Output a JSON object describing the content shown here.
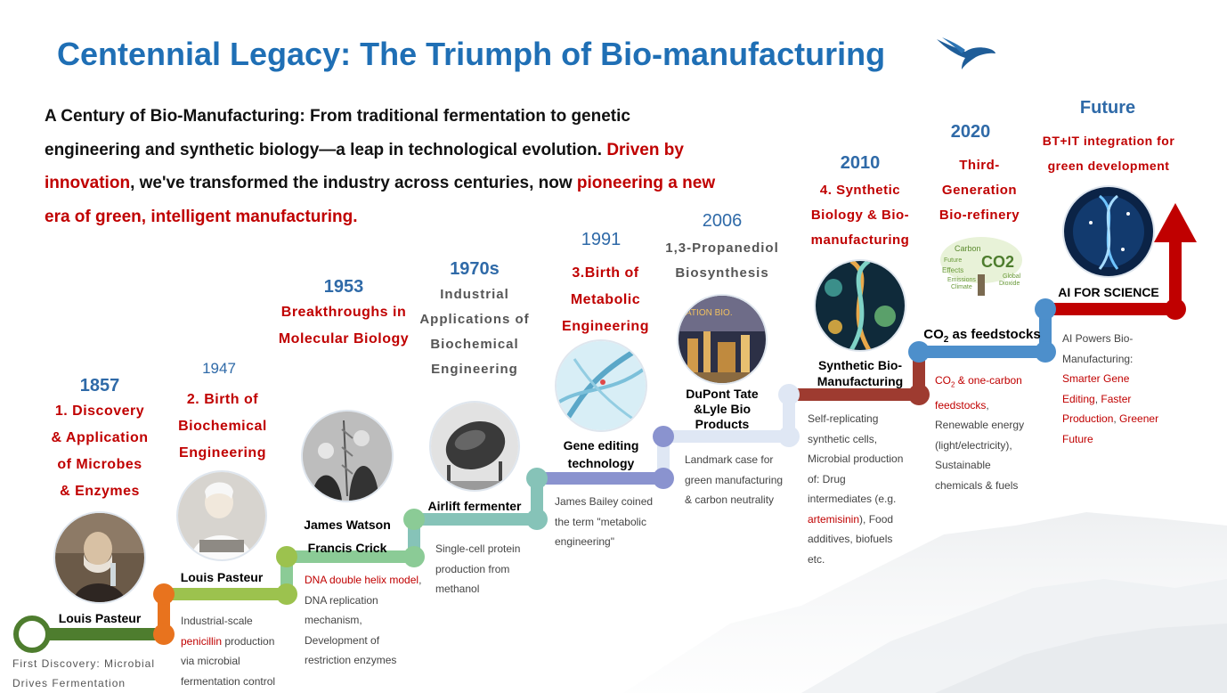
{
  "title": "Centennial Legacy: The Triumph of Bio-manufacturing",
  "intro": {
    "part1": "A Century of Bio-Manufacturing: From traditional fermentation to genetic engineering and synthetic biology—a leap in technological evolution. ",
    "red1": "Driven by innovation",
    "part2": ", we've transformed the industry across centuries, now ",
    "red2": "pioneering a new era of green, intelligent manufacturing."
  },
  "start_note": {
    "line1": "First Discovery: Microbial",
    "line2": "Drives Fermentation"
  },
  "milestones": [
    {
      "year": "1857",
      "lines": [
        "1. Discovery",
        "& Application",
        "of Microbes",
        "& Enzymes"
      ],
      "label": [
        "Louis Pasteur"
      ]
    },
    {
      "year": "1947",
      "lines": [
        "2. Birth of",
        "Biochemical",
        "Engineering"
      ],
      "label": [
        "Louis Pasteur"
      ],
      "desc": {
        "a": "Industrial-scale",
        "b_red": "penicillin",
        "b": " production",
        "c": "via microbial",
        "d": "fermentation control"
      }
    },
    {
      "year": "1953",
      "lines": [
        "Breakthroughs in",
        "Molecular Biology"
      ],
      "label": [
        "James Watson",
        "Francis Crick"
      ],
      "desc": {
        "a_red": "DNA double helix model",
        "a": ",",
        "b": "DNA replication",
        "c": "mechanism,",
        "d": "Development of",
        "e": "restriction enzymes"
      }
    },
    {
      "year": "1970s",
      "lines": [
        "Industrial",
        "Applications of",
        "Biochemical",
        "Engineering"
      ],
      "label": [
        "Airlift fermenter"
      ],
      "desc": {
        "a": "Single-cell protein",
        "b": "production from",
        "c": "methanol"
      }
    },
    {
      "year": "1991",
      "lines": [
        "3.Birth of",
        "Metabolic",
        "Engineering"
      ],
      "label": [
        "Gene editing",
        "technology"
      ],
      "desc": {
        "a": "James Bailey coined",
        "b": "the term \"metabolic",
        "c": "engineering\""
      }
    },
    {
      "year": "2006",
      "lines": [
        "1,3-Propanediol",
        "Biosynthesis"
      ],
      "label": [
        "DuPont Tate",
        "&Lyle Bio",
        "Products"
      ],
      "desc": {
        "a": "Landmark case for",
        "b": "green manufacturing",
        "c": "& carbon neutrality"
      },
      "photo_text": "ATION BIO."
    },
    {
      "year": "2010",
      "lines": [
        "4. Synthetic",
        "Biology & Bio-",
        "manufacturing"
      ],
      "label": [
        "Synthetic Bio-",
        "Manufacturing"
      ],
      "desc": {
        "a": "Self-replicating",
        "b": "synthetic cells,",
        "c": "Microbial production",
        "d": "of: Drug",
        "e": "intermediates (e.g.",
        "f_red": "artemisinin",
        "f": "), Food",
        "g": "additives, biofuels",
        "h": "etc."
      }
    },
    {
      "year": "2020",
      "lines": [
        "Third-",
        "Generation",
        "Bio-refinery"
      ],
      "label_main": "CO",
      "label_sub": "2",
      "label_rest": " as feedstocks",
      "desc": {
        "a_main": "CO",
        "a_sub": "2",
        "a_red": " & one-carbon",
        "b_red": "feedstocks",
        "b": ",",
        "c": "Renewable energy",
        "d": "(light/electricity),",
        "e": "Sustainable",
        "f": "chemicals & fuels"
      },
      "tree_words": [
        "Carbon",
        "CO2",
        "Future",
        "Effects",
        "Emissions",
        "Climate",
        "Global",
        "Dioxide"
      ]
    },
    {
      "year": "Future",
      "lines": [
        "BT+IT integration for",
        "green development"
      ],
      "label": [
        "AI FOR SCIENCE"
      ],
      "desc": {
        "a": "AI Powers Bio-",
        "b": "Manufacturing:",
        "c_red": "Smarter Gene",
        "d_red": "Editing",
        "d": ", ",
        "d2_red": "Faster",
        "e_red": "Production",
        "e": ", ",
        "e2_red": "Greener",
        "f_red": "Future"
      }
    }
  ],
  "colors": {
    "title": "#1f6fb5",
    "year": "#2f6aa8",
    "highlight": "#c00000",
    "steps": [
      "#4e7d2e",
      "#e8731e",
      "#9cc24e",
      "#8bcb96",
      "#86c3b8",
      "#8a93cf",
      "#dfe7f4",
      "#9e3b30",
      "#4d8fcb",
      "#c00000"
    ]
  },
  "icons": {
    "bird": "eagle-icon",
    "arrow": "arrow-up-icon"
  }
}
